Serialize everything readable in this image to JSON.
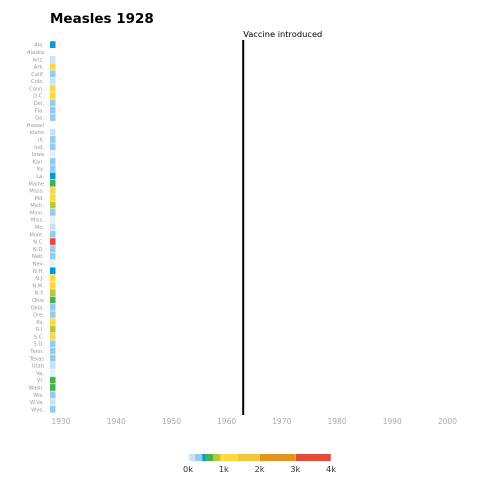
{
  "chart_data": {
    "type": "heatmap",
    "title": "Measles 1928",
    "x_range": [
      1928,
      2003
    ],
    "x_ticks": [
      "1930",
      "1940",
      "1950",
      "1960",
      "1970",
      "1980",
      "1990",
      "2000"
    ],
    "states": [
      "Ala.",
      "Alaska",
      "Ariz.",
      "Ark.",
      "Calif.",
      "Colo.",
      "Conn.",
      "D.C.",
      "Del.",
      "Fla.",
      "Ga.",
      "Hawaii",
      "Idaho",
      "Ill.",
      "Ind.",
      "Iowa",
      "Kan.",
      "Ky.",
      "La.",
      "Maine",
      "Mass.",
      "Md.",
      "Mich.",
      "Minn.",
      "Miss.",
      "Mo.",
      "Mont.",
      "N.C.",
      "N.D.",
      "Neb.",
      "Nev.",
      "N.H.",
      "N.J.",
      "N.M.",
      "N.Y.",
      "Ohio",
      "Okla.",
      "Ore.",
      "Pa.",
      "R.I.",
      "S.C.",
      "S.D.",
      "Tenn.",
      "Texas",
      "Utah",
      "Va.",
      "Vt.",
      "Wash.",
      "Wis.",
      "W.Va.",
      "Wyo."
    ],
    "years": [
      1928
    ],
    "values": [
      [
        430
      ],
      [
        null
      ],
      [
        150
      ],
      [
        900
      ],
      [
        250
      ],
      [
        120
      ],
      [
        940
      ],
      [
        1000
      ],
      [
        340
      ],
      [
        350
      ],
      [
        200
      ],
      [
        null
      ],
      [
        80
      ],
      [
        280
      ],
      [
        200
      ],
      [
        30
      ],
      [
        320
      ],
      [
        230
      ],
      [
        450
      ],
      [
        650
      ],
      [
        960
      ],
      [
        1050
      ],
      [
        860
      ],
      [
        260
      ],
      [
        40
      ],
      [
        180
      ],
      [
        340
      ],
      [
        3250
      ],
      [
        300
      ],
      [
        320
      ],
      [
        20
      ],
      [
        400
      ],
      [
        1040
      ],
      [
        950
      ],
      [
        880
      ],
      [
        560
      ],
      [
        380
      ],
      [
        290
      ],
      [
        950
      ],
      [
        850
      ],
      [
        980
      ],
      [
        220
      ],
      [
        300
      ],
      [
        330
      ],
      [
        80
      ],
      [
        30
      ],
      [
        500
      ],
      [
        500
      ],
      [
        330
      ],
      [
        160
      ],
      [
        250
      ]
    ],
    "annotation": {
      "year": 1963,
      "label": "Vaccine introduced"
    },
    "color_scale": {
      "ticks": [
        "0k",
        "1k",
        "2k",
        "3k",
        "4k"
      ],
      "max": 4000,
      "stops": [
        {
          "value": 0,
          "color": "#e7f0fa"
        },
        {
          "value": 50,
          "color": "#c9e2f6"
        },
        {
          "value": 200,
          "color": "#95cbee"
        },
        {
          "value": 400,
          "color": "#0099dc"
        },
        {
          "value": 500,
          "color": "#4ab04a"
        },
        {
          "value": 700,
          "color": "#b8c63a"
        },
        {
          "value": 900,
          "color": "#ffd73e"
        },
        {
          "value": 1400,
          "color": "#eec73a"
        },
        {
          "value": 2000,
          "color": "#e29421"
        },
        {
          "value": 3000,
          "color": "#e54b3b"
        },
        {
          "value": 4000,
          "color": "#d64233"
        }
      ]
    }
  }
}
